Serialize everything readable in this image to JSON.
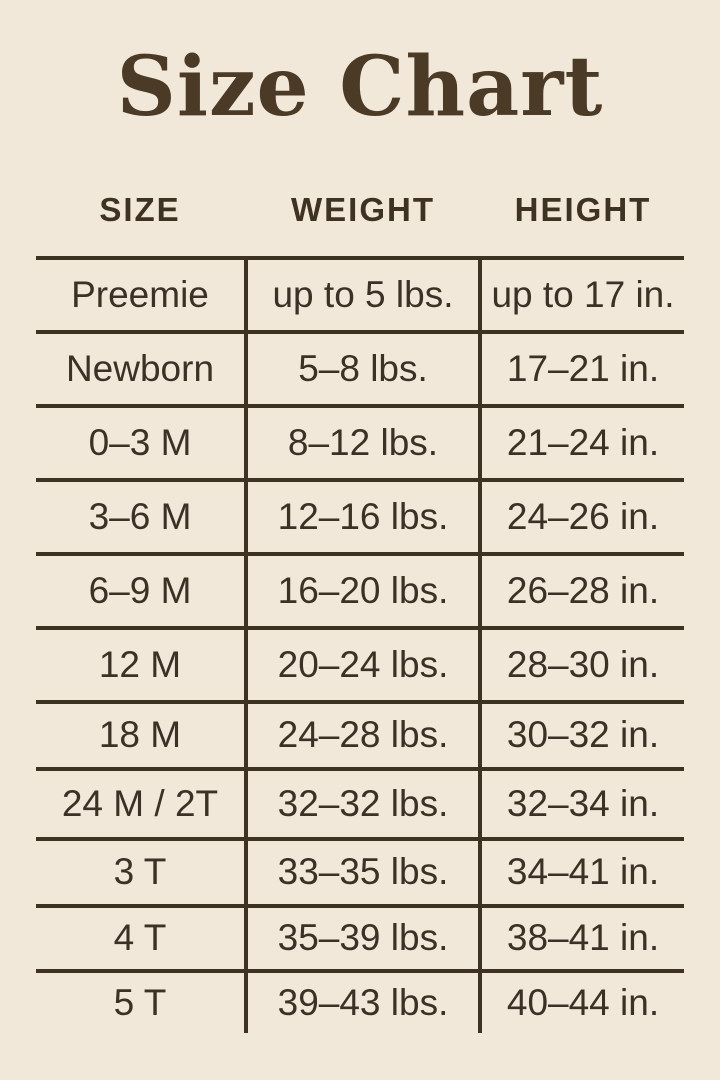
{
  "title": "Size Chart",
  "colors": {
    "background": "#f2e8d9",
    "ink": "#3b3124",
    "line": "#3e3322",
    "title_ink": "#4a3a26"
  },
  "chart_data": {
    "type": "table",
    "title": "Size Chart",
    "headers": [
      "SIZE",
      "WEIGHT",
      "HEIGHT"
    ],
    "rows": [
      [
        "Preemie",
        "up to 5 lbs.",
        "up to 17 in."
      ],
      [
        "Newborn",
        "5–8 lbs.",
        "17–21 in."
      ],
      [
        "0–3 M",
        "8–12 lbs.",
        "21–24 in."
      ],
      [
        "3–6 M",
        "12–16 lbs.",
        "24–26 in."
      ],
      [
        "6–9 M",
        "16–20 lbs.",
        "26–28 in."
      ],
      [
        "12 M",
        "20–24 lbs.",
        "28–30 in."
      ],
      [
        "18 M",
        "24–28 lbs.",
        "30–32 in."
      ],
      [
        "24 M / 2T",
        "32–32 lbs.",
        "32–34 in."
      ],
      [
        "3 T",
        "33–35 lbs.",
        "34–41 in."
      ],
      [
        "4 T",
        "35–39 lbs.",
        "38–41 in."
      ],
      [
        "5 T",
        "39–43 lbs.",
        "40–44 in."
      ]
    ],
    "layout": {
      "grid": "horizontal rules between rows, vertical rules around middle column, no outer side or bottom border",
      "column_dividers_extend_below_last_row": true
    }
  }
}
